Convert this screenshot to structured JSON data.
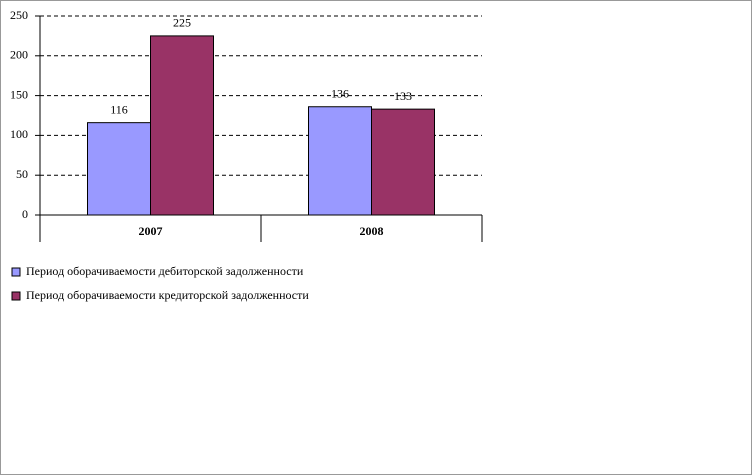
{
  "chart_data": {
    "type": "bar",
    "categories": [
      "2007",
      "2008"
    ],
    "series": [
      {
        "name": "Период оборачиваемости дебиторской задолженности",
        "color": "#9999ff",
        "values": [
          116,
          136
        ]
      },
      {
        "name": "Период оборачиваемости кредиторской задолженности",
        "color": "#993366",
        "values": [
          225,
          133
        ]
      }
    ],
    "ylim": [
      0,
      250
    ],
    "yticks": [
      0,
      50,
      100,
      150,
      200,
      250
    ],
    "grid": true
  }
}
